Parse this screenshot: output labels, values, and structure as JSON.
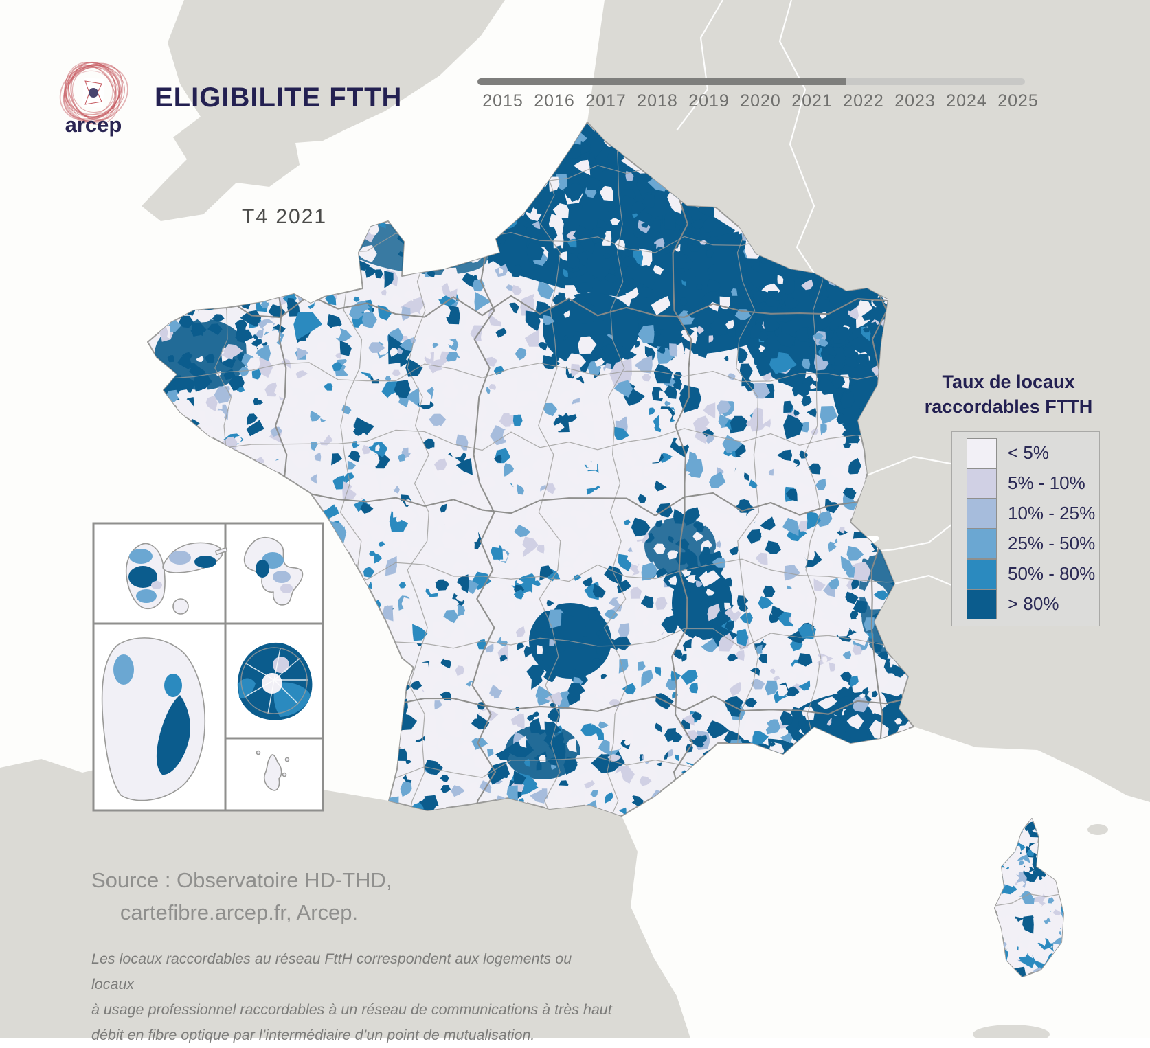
{
  "header": {
    "logo_text": "arcep",
    "title": "ELIGIBILITE FTTH"
  },
  "map": {
    "period_label": "T4 2021"
  },
  "timeline": {
    "years": [
      "2015",
      "2016",
      "2017",
      "2018",
      "2019",
      "2020",
      "2021",
      "2022",
      "2023",
      "2024",
      "2025"
    ]
  },
  "legend": {
    "title_line1": "Taux de locaux",
    "title_line2": "raccordables FTTH",
    "classes": [
      {
        "label": "< 5%",
        "color": "#f2f0f6"
      },
      {
        "label": "5% - 10%",
        "color": "#d0d0e4"
      },
      {
        "label": "10% - 25%",
        "color": "#a6bcdc"
      },
      {
        "label": "25% - 50%",
        "color": "#6ba7d2"
      },
      {
        "label": "50% - 80%",
        "color": "#2b8abf"
      },
      {
        "label": "> 80%",
        "color": "#0b5c8d"
      }
    ]
  },
  "source": {
    "line1": "Source : Observatoire HD-THD,",
    "line2": "cartefibre.arcep.fr, Arcep."
  },
  "note": {
    "line1": "Les locaux raccordables au réseau FttH correspondent aux logements ou locaux",
    "line2": "à usage professionnel raccordables à un réseau de communications à très haut",
    "line3": "débit en fibre optique par l’intermédiaire d’un point de mutualisation."
  },
  "colors": {
    "sea": "#fdfdfb",
    "foreign_land": "#dbdad5",
    "foreign_border": "#ffffff",
    "france_base": "#f1f0f6",
    "coastline": "#9b9b99",
    "department_border": "#9c9c9a",
    "region_border": "#8a8a88",
    "timeline_progress": "#7e7e7c",
    "timeline_track": "#c8c8c6",
    "navy": "#232051",
    "gray_text": "#8f8f8d",
    "logo_red": "#c4565c"
  },
  "chart_data": {
    "type": "choropleth_map",
    "title": "ELIGIBILITE FTTH",
    "metric": "Taux de locaux raccordables FTTH",
    "period": "T4 2021",
    "legend_classes": [
      "< 5%",
      "5% - 10%",
      "10% - 25%",
      "25% - 50%",
      "50% - 80%",
      "> 80%"
    ],
    "legend_colors": [
      "#f2f0f6",
      "#d0d0e4",
      "#a6bcdc",
      "#6ba7d2",
      "#2b8abf",
      "#0b5c8d"
    ],
    "areas_shown": [
      "France métropolitaine",
      "Corse",
      "Guadeloupe",
      "Martinique",
      "Guyane",
      "La Réunion",
      "Mayotte"
    ],
    "high_coverage_zones": [
      "Hauts-de-France",
      "Île-de-France",
      "Champagne / Lorraine / Alsace",
      "pointe de la Bretagne",
      "Cantal",
      "Haute-Loire",
      "littoral méditerranéen",
      "agglomérations (Lyon, Toulouse)",
      "La Réunion"
    ],
    "low_coverage_zones": [
      "centre-ouest",
      "Dordogne / Limousin",
      "Alpes intérieures",
      "intérieur de la Corse",
      "Guyane intérieure",
      "Mayotte"
    ]
  }
}
